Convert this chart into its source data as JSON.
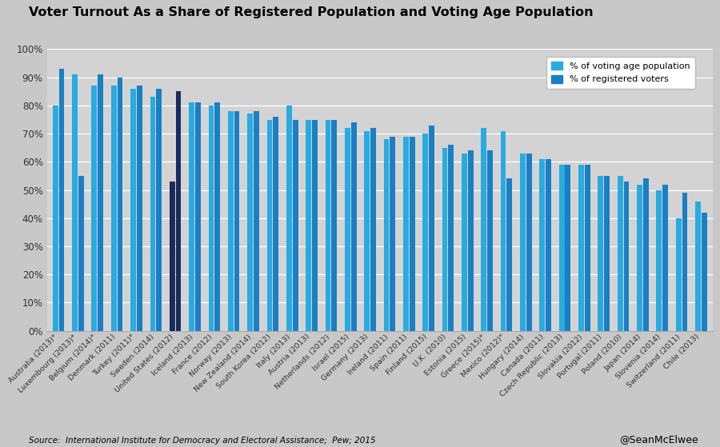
{
  "title": "Voter Turnout As a Share of Registered Population and Voting Age Population",
  "countries": [
    "Australia (2013)*",
    "Luxembourg (2013)*",
    "Belgium (2014)*",
    "Denmark (2011)",
    "Turkey (2011)*",
    "Sweden (2014)",
    "United States (2012)",
    "Iceland (2013)",
    "France (2012)",
    "Norway (2013)",
    "New Zealand (2014)",
    "South Korea (2012)",
    "Italy (2013)",
    "Austria (2013)",
    "Netherlands (2012)",
    "Israel (2015)",
    "Germany (2013)",
    "Ireland (2011)",
    "Spain (2011)",
    "Finland (2015)",
    "U.K. (2010)",
    "Estonia (2015)",
    "Greece (2015)*",
    "Mexico (2012)*",
    "Hungary (2014)",
    "Canada (2011)",
    "Czech Republic (2013)",
    "Slovakia (2012)",
    "Portugal (2011)",
    "Poland (2010)",
    "Japan (2014)",
    "Slovenia (2014)",
    "Switzerland (2011)",
    "Chile (2013)"
  ],
  "vap": [
    80,
    91,
    87,
    87,
    86,
    83,
    53,
    81,
    80,
    78,
    77,
    75,
    80,
    75,
    75,
    72,
    71,
    68,
    69,
    70,
    65,
    63,
    72,
    71,
    63,
    61,
    59,
    59,
    55,
    55,
    52,
    50,
    40,
    46
  ],
  "reg": [
    93,
    55,
    91,
    90,
    87,
    86,
    85,
    81,
    81,
    78,
    78,
    76,
    75,
    75,
    75,
    74,
    72,
    69,
    69,
    73,
    66,
    64,
    64,
    54,
    63,
    61,
    59,
    59,
    55,
    53,
    54,
    52,
    49,
    42
  ],
  "us_index": 6,
  "light_blue": "#29ABE2",
  "mid_blue": "#1A7FC4",
  "dark_blue": "#1C2B5E",
  "fig_bg": "#C8C8C8",
  "plot_bg": "#D3D3D3",
  "source_text": "Source:  International Institute for Democracy and Electoral Assistance;  Pew; 2015",
  "credit_text": "@SeanMcElwee"
}
